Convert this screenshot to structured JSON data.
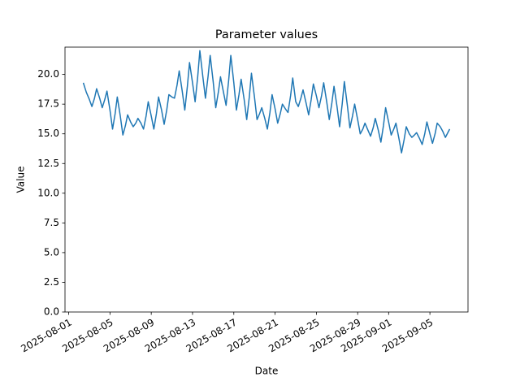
{
  "chart_data": {
    "type": "line",
    "title": "Parameter values",
    "x_label": "Date",
    "y_label": "Value",
    "color": "#1f77b4",
    "x": [
      "2025-08-02 10:00",
      "2025-08-02 17:00",
      "2025-08-03 00:00",
      "2025-08-03 06:00",
      "2025-08-03 12:00",
      "2025-08-03 17:00",
      "2025-08-04 00:00",
      "2025-08-04 06:00",
      "2025-08-04 12:00",
      "2025-08-04 17:00",
      "2025-08-05 00:00",
      "2025-08-05 06:00",
      "2025-08-05 12:00",
      "2025-08-05 17:00",
      "2025-08-06 00:00",
      "2025-08-06 06:00",
      "2025-08-06 12:00",
      "2025-08-06 17:00",
      "2025-08-07 00:00",
      "2025-08-07 06:00",
      "2025-08-07 12:00",
      "2025-08-07 17:00",
      "2025-08-08 00:00",
      "2025-08-08 06:00",
      "2025-08-08 12:00",
      "2025-08-08 17:00",
      "2025-08-09 00:00",
      "2025-08-09 06:00",
      "2025-08-09 12:00",
      "2025-08-09 17:00",
      "2025-08-10 00:00",
      "2025-08-10 06:00",
      "2025-08-10 12:00",
      "2025-08-10 17:00",
      "2025-08-11 00:00",
      "2025-08-11 06:00",
      "2025-08-11 12:00",
      "2025-08-11 17:00",
      "2025-08-12 00:00",
      "2025-08-12 06:00",
      "2025-08-12 12:00",
      "2025-08-12 17:00",
      "2025-08-13 00:00",
      "2025-08-13 06:00",
      "2025-08-13 12:00",
      "2025-08-13 17:00",
      "2025-08-14 00:00",
      "2025-08-14 06:00",
      "2025-08-14 12:00",
      "2025-08-14 17:00",
      "2025-08-15 00:00",
      "2025-08-15 06:00",
      "2025-08-15 12:00",
      "2025-08-15 17:00",
      "2025-08-16 00:00",
      "2025-08-16 06:00",
      "2025-08-16 12:00",
      "2025-08-16 17:00",
      "2025-08-17 00:00",
      "2025-08-17 06:00",
      "2025-08-17 12:00",
      "2025-08-17 17:00",
      "2025-08-18 00:00",
      "2025-08-18 06:00",
      "2025-08-18 12:00",
      "2025-08-18 17:00",
      "2025-08-19 00:00",
      "2025-08-19 06:00",
      "2025-08-19 12:00",
      "2025-08-19 17:00",
      "2025-08-20 00:00",
      "2025-08-20 06:00",
      "2025-08-20 12:00",
      "2025-08-20 17:00",
      "2025-08-21 00:00",
      "2025-08-21 06:00",
      "2025-08-21 12:00",
      "2025-08-21 17:00",
      "2025-08-22 00:00",
      "2025-08-22 06:00",
      "2025-08-22 12:00",
      "2025-08-22 17:00",
      "2025-08-23 00:00",
      "2025-08-23 06:00",
      "2025-08-23 12:00",
      "2025-08-23 17:00",
      "2025-08-24 00:00",
      "2025-08-24 06:00",
      "2025-08-24 12:00",
      "2025-08-24 17:00",
      "2025-08-25 00:00",
      "2025-08-25 06:00",
      "2025-08-25 12:00",
      "2025-08-25 17:00",
      "2025-08-26 00:00",
      "2025-08-26 06:00",
      "2025-08-26 12:00",
      "2025-08-26 17:00",
      "2025-08-27 00:00",
      "2025-08-27 06:00",
      "2025-08-27 12:00",
      "2025-08-27 17:00",
      "2025-08-28 00:00",
      "2025-08-28 06:00",
      "2025-08-28 12:00",
      "2025-08-28 17:00",
      "2025-08-29 00:00",
      "2025-08-29 06:00",
      "2025-08-29 12:00",
      "2025-08-29 17:00",
      "2025-08-30 00:00",
      "2025-08-30 06:00",
      "2025-08-30 12:00",
      "2025-08-30 17:00",
      "2025-08-31 00:00",
      "2025-08-31 06:00",
      "2025-08-31 12:00",
      "2025-08-31 17:00",
      "2025-09-01 00:00",
      "2025-09-01 06:00",
      "2025-09-01 12:00",
      "2025-09-01 17:00",
      "2025-09-02 00:00",
      "2025-09-02 06:00",
      "2025-09-02 12:00",
      "2025-09-02 17:00",
      "2025-09-03 00:00",
      "2025-09-03 06:00",
      "2025-09-03 12:00",
      "2025-09-03 17:00",
      "2025-09-04 00:00",
      "2025-09-04 06:00",
      "2025-09-04 12:00",
      "2025-09-04 17:00",
      "2025-09-05 00:00",
      "2025-09-05 06:00",
      "2025-09-05 12:00",
      "2025-09-05 17:00",
      "2025-09-06 00:00",
      "2025-09-06 06:00",
      "2025-09-06 12:00",
      "2025-09-06 22:00"
    ],
    "values": [
      19.3,
      18.5,
      17.9,
      17.3,
      18.0,
      18.8,
      18.0,
      17.2,
      17.9,
      18.6,
      17.0,
      15.4,
      16.7,
      18.1,
      16.5,
      14.9,
      15.7,
      16.6,
      16.0,
      15.6,
      15.9,
      16.3,
      15.9,
      15.4,
      16.5,
      17.7,
      16.5,
      15.4,
      16.7,
      18.1,
      17.0,
      15.8,
      17.0,
      18.3,
      18.1,
      18.0,
      19.1,
      20.3,
      18.6,
      17.0,
      19.0,
      21.0,
      19.3,
      17.7,
      19.8,
      22.0,
      19.8,
      18.0,
      19.8,
      21.6,
      19.4,
      17.2,
      18.5,
      19.8,
      18.5,
      17.4,
      19.5,
      21.6,
      19.3,
      17.0,
      18.3,
      19.6,
      17.9,
      16.2,
      18.1,
      20.1,
      18.1,
      16.2,
      16.7,
      17.2,
      16.3,
      15.4,
      16.8,
      18.3,
      17.1,
      15.9,
      16.7,
      17.5,
      17.1,
      16.8,
      18.2,
      19.7,
      17.7,
      17.3,
      18.0,
      18.7,
      17.6,
      16.6,
      17.9,
      19.2,
      18.2,
      17.2,
      18.2,
      19.3,
      17.7,
      16.2,
      17.6,
      19.0,
      17.3,
      15.6,
      17.5,
      19.4,
      17.4,
      15.5,
      16.5,
      17.5,
      16.2,
      15.0,
      15.4,
      15.9,
      15.3,
      14.8,
      15.5,
      16.3,
      15.3,
      14.3,
      15.7,
      17.2,
      16.0,
      14.9,
      15.4,
      15.9,
      14.6,
      13.4,
      14.5,
      15.6,
      15.0,
      14.7,
      14.9,
      15.1,
      14.6,
      14.1,
      15.0,
      16.0,
      15.0,
      14.2,
      15.0,
      15.9,
      15.6,
      15.2,
      14.7,
      15.4
    ],
    "xlim": [
      "2025-07-31 15:25",
      "2025-09-08 16:35"
    ],
    "xticks": [
      "2025-08-01",
      "2025-08-05",
      "2025-08-09",
      "2025-08-13",
      "2025-08-17",
      "2025-08-21",
      "2025-08-25",
      "2025-08-29",
      "2025-09-01",
      "2025-09-05"
    ],
    "ylim": [
      0,
      22.3
    ],
    "yticks": [
      {
        "value": 0,
        "label": "0.0"
      },
      2.5,
      {
        "value": 5,
        "label": "5.0"
      },
      7.5,
      {
        "value": 10,
        "label": "10.0"
      },
      12.5,
      {
        "value": 15,
        "label": "15.0"
      },
      17.5,
      {
        "value": 20,
        "label": "20.0"
      }
    ],
    "grid": false
  }
}
